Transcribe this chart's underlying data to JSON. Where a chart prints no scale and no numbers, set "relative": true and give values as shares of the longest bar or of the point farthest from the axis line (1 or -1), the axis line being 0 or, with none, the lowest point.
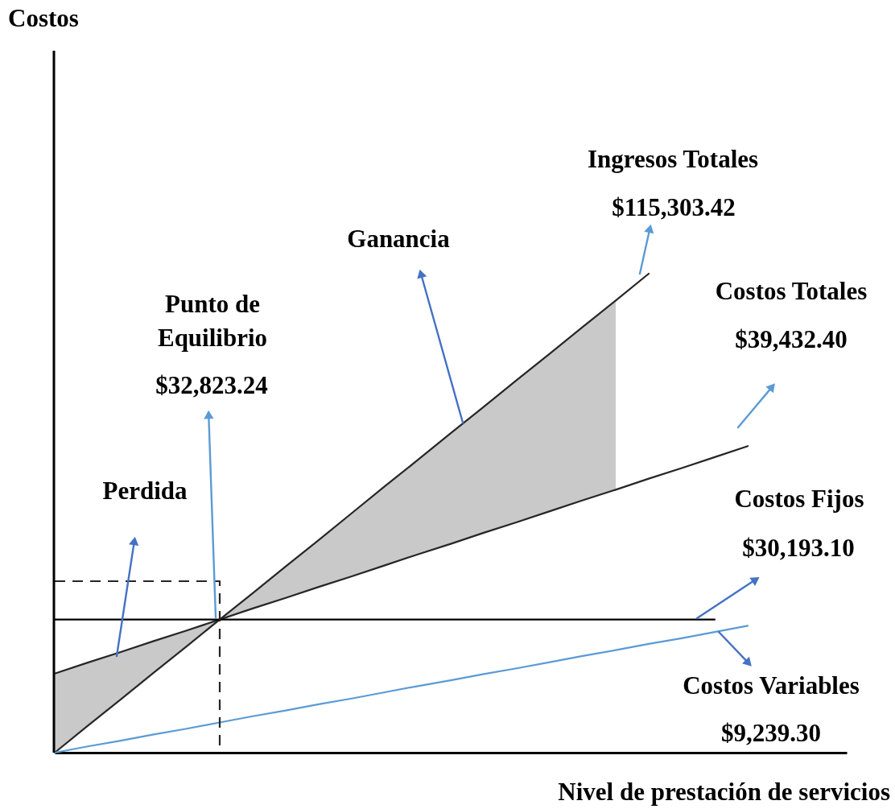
{
  "chart_data": {
    "type": "line",
    "relative": true,
    "xlabel": "Nivel de prestación de servicios",
    "categories": [
      null,
      null,
      null,
      null,
      null,
      null,
      null,
      null,
      null,
      null,
      null,
      null,
      null,
      null,
      null,
      null,
      null,
      null,
      null,
      null,
      null,
      null,
      null,
      null,
      null
    ],
    "series": [
      {
        "color": "#262626",
        "values": [
          0,
          0.056,
          0.111,
          0.167,
          0.222,
          0.278,
          0.333,
          0.389,
          0.444,
          0.5,
          0.556,
          0.611,
          0.667,
          0.722,
          0.778,
          0.833,
          0.889,
          0.944,
          1,
          null,
          null,
          null,
          null,
          null,
          null
        ],
        "lower": [
          0,
          0.056,
          0.111,
          0.167,
          0.222,
          0.278,
          0.301,
          0.323,
          0.346,
          0.368,
          0.391,
          0.414,
          0.436,
          0.459,
          0.481,
          0.504,
          0.527,
          0.549,
          null,
          null,
          null,
          null,
          null,
          null,
          null
        ],
        "upper": [
          0.165,
          0.188,
          0.21,
          0.233,
          0.255,
          0.278,
          0.333,
          0.389,
          0.444,
          0.5,
          0.556,
          0.611,
          0.667,
          0.722,
          0.778,
          0.833,
          0.889,
          0.944,
          null,
          null,
          null,
          null,
          null,
          null,
          null
        ]
      },
      {
        "color": "#262626",
        "values": [
          0.165,
          0.188,
          0.21,
          0.233,
          0.255,
          0.278,
          0.301,
          0.323,
          0.346,
          0.368,
          0.391,
          0.414,
          0.436,
          0.459,
          0.481,
          0.504,
          0.527,
          0.549,
          0.572,
          0.594,
          0.617,
          0.64,
          null,
          null,
          null
        ]
      },
      {
        "color": "#000000",
        "values": [
          0.278,
          0.278,
          0.278,
          0.278,
          0.278,
          0.278,
          0.278,
          0.278,
          0.278,
          0.278,
          0.278,
          0.278,
          0.278,
          0.278,
          0.278,
          0.278,
          0.278,
          0.278,
          0.278,
          0.278,
          0.278,
          null,
          null,
          null,
          null
        ]
      },
      {
        "color": "#5b9bd5",
        "values": [
          0,
          0.013,
          0.025,
          0.038,
          0.05,
          0.063,
          0.076,
          0.088,
          0.101,
          0.113,
          0.126,
          0.139,
          0.151,
          0.164,
          0.176,
          0.189,
          0.202,
          0.214,
          0.227,
          0.239,
          0.252,
          0.265,
          null,
          null,
          null
        ]
      },
      {
        "type": "step",
        "line_style": "dashed",
        "color": "#262626",
        "values": [
          0.358,
          0.358,
          0.358,
          0.358,
          0.358,
          0,
          null,
          null,
          null,
          null,
          null,
          null,
          null,
          null,
          null,
          null,
          null,
          null,
          null,
          null,
          null,
          null,
          null,
          null,
          null
        ]
      }
    ],
    "annotations": [
      "Costos",
      "Ingresos Totales",
      "$115,303.42",
      "Ganancia",
      "Costos Totales",
      "$39,432.40",
      "Punto de\nEquilibrio",
      "$32,823.24",
      "Perdida",
      "Costos Fijos",
      "$30,193.10",
      "Costos Variables",
      "$9,239.30"
    ]
  }
}
